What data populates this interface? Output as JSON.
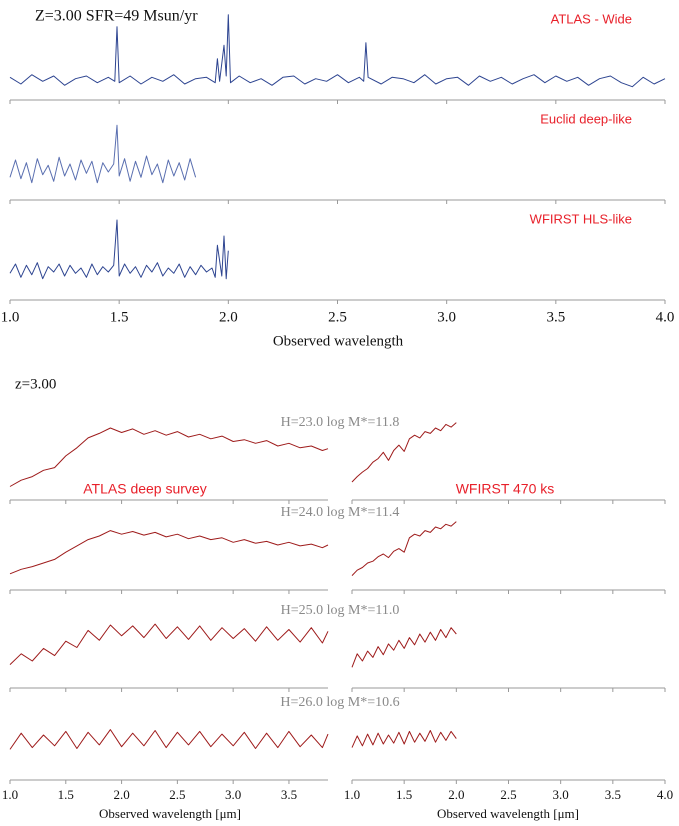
{
  "chart_data": [
    {
      "type": "line",
      "title": "Z=3.00 SFR=49 Msun/yr",
      "xlabel": "Observed wavelength",
      "xlim": [
        1.0,
        4.0
      ],
      "ylim": [
        -1.5,
        5.25
      ],
      "xticks": [
        {
          "value": 1.0,
          "label": "1.0"
        },
        {
          "value": 1.5,
          "label": "1.5"
        },
        {
          "value": 2.0,
          "label": "2.0"
        },
        {
          "value": 2.5,
          "label": "2.5"
        },
        {
          "value": 3.0,
          "label": "3.0"
        },
        {
          "value": 3.5,
          "label": "3.5"
        },
        {
          "value": 4.0,
          "label": "4.0"
        }
      ],
      "series": [
        {
          "name": "ATLAS - Wide",
          "color": "#2e4591",
          "x": [
            1.0,
            1.05,
            1.1,
            1.15,
            1.2,
            1.25,
            1.3,
            1.35,
            1.4,
            1.45,
            1.48,
            1.49,
            1.5,
            1.55,
            1.6,
            1.65,
            1.7,
            1.75,
            1.8,
            1.85,
            1.9,
            1.94,
            1.95,
            1.96,
            1.98,
            1.99,
            2.0,
            2.01,
            2.05,
            2.1,
            2.15,
            2.2,
            2.25,
            2.3,
            2.35,
            2.4,
            2.45,
            2.5,
            2.55,
            2.6,
            2.62,
            2.63,
            2.64,
            2.7,
            2.75,
            2.8,
            2.85,
            2.9,
            2.95,
            3.0,
            3.05,
            3.1,
            3.15,
            3.2,
            3.25,
            3.3,
            3.35,
            3.4,
            3.45,
            3.5,
            3.55,
            3.6,
            3.65,
            3.7,
            3.75,
            3.8,
            3.85,
            3.9,
            3.95,
            4.0
          ],
          "values": [
            0.2,
            -0.3,
            0.4,
            -0.1,
            0.3,
            -0.4,
            0.1,
            0.3,
            -0.2,
            0.2,
            -0.1,
            4.0,
            -0.2,
            0.3,
            -0.3,
            0.2,
            -0.1,
            0.4,
            -0.3,
            0.1,
            0.2,
            -0.2,
            1.6,
            -0.1,
            2.6,
            0.3,
            4.9,
            -0.2,
            0.3,
            -0.2,
            0.1,
            -0.4,
            0.2,
            0.3,
            -0.3,
            0.1,
            -0.1,
            0.4,
            -0.2,
            0.2,
            -0.1,
            2.8,
            0.2,
            -0.3,
            0.2,
            0.1,
            -0.2,
            0.4,
            -0.3,
            0.1,
            0.2,
            -0.4,
            0.3,
            -0.1,
            0.2,
            -0.3,
            0.1,
            0.4,
            -0.2,
            0.3,
            -0.1,
            0.2,
            -0.4,
            0.1,
            0.3,
            -0.2,
            -0.5,
            0.2,
            -0.3,
            0.1
          ]
        },
        {
          "name": "Euclid deep-like",
          "color": "#5a6fb0",
          "x": [
            1.0,
            1.025,
            1.05,
            1.075,
            1.1,
            1.125,
            1.15,
            1.175,
            1.2,
            1.225,
            1.25,
            1.275,
            1.3,
            1.325,
            1.35,
            1.375,
            1.4,
            1.425,
            1.45,
            1.475,
            1.49,
            1.5,
            1.525,
            1.55,
            1.575,
            1.6,
            1.625,
            1.65,
            1.675,
            1.7,
            1.725,
            1.75,
            1.775,
            1.8,
            1.825,
            1.85
          ],
          "values": [
            0.2,
            1.5,
            0.1,
            1.3,
            -0.2,
            1.6,
            0.4,
            1.1,
            -0.1,
            1.7,
            0.3,
            1.2,
            0.0,
            1.5,
            0.5,
            1.4,
            -0.2,
            1.3,
            0.6,
            1.2,
            4.1,
            0.3,
            1.6,
            -0.1,
            1.4,
            0.2,
            1.8,
            0.4,
            1.2,
            -0.2,
            1.5,
            0.3,
            1.3,
            0.0,
            1.6,
            0.2
          ]
        },
        {
          "name": "WFIRST HLS-like",
          "color": "#2e4591",
          "x": [
            1.0,
            1.025,
            1.05,
            1.075,
            1.1,
            1.125,
            1.15,
            1.175,
            1.2,
            1.225,
            1.25,
            1.275,
            1.3,
            1.325,
            1.35,
            1.375,
            1.4,
            1.425,
            1.45,
            1.475,
            1.49,
            1.5,
            1.525,
            1.55,
            1.575,
            1.6,
            1.625,
            1.65,
            1.675,
            1.7,
            1.725,
            1.75,
            1.775,
            1.8,
            1.825,
            1.85,
            1.875,
            1.9,
            1.925,
            1.94,
            1.95,
            1.97,
            1.98,
            1.99,
            2.0
          ],
          "values": [
            0.5,
            1.2,
            0.2,
            1.1,
            0.4,
            1.3,
            0.1,
            1.0,
            0.6,
            1.2,
            0.3,
            1.1,
            0.5,
            0.9,
            0.2,
            1.2,
            0.4,
            1.0,
            0.6,
            1.1,
            4.5,
            0.3,
            1.2,
            0.5,
            1.0,
            0.2,
            1.1,
            0.6,
            1.3,
            0.3,
            0.9,
            0.5,
            1.2,
            0.2,
            1.0,
            0.4,
            1.1,
            0.6,
            0.9,
            0.2,
            2.6,
            0.3,
            3.3,
            0.1,
            2.2
          ]
        }
      ]
    },
    {
      "type": "line",
      "title": "z=3.00",
      "label": "ATLAS deep survey",
      "xlabel": "Observed wavelength [μm]",
      "xlim": [
        1.0,
        3.85
      ],
      "ylim": [
        0,
        10
      ],
      "xticks": [
        {
          "value": 1.0,
          "label": "1.0"
        },
        {
          "value": 1.5,
          "label": "1.5"
        },
        {
          "value": 2.0,
          "label": "2.0"
        },
        {
          "value": 2.5,
          "label": "2.5"
        },
        {
          "value": 3.0,
          "label": "3.0"
        },
        {
          "value": 3.5,
          "label": "3.5"
        }
      ],
      "series": [
        {
          "name": "H=23.0 log M*=11.8",
          "color": "#9e1b1b",
          "x": [
            1.0,
            1.1,
            1.2,
            1.3,
            1.4,
            1.5,
            1.6,
            1.7,
            1.8,
            1.9,
            2.0,
            2.1,
            2.2,
            2.3,
            2.4,
            2.5,
            2.6,
            2.7,
            2.8,
            2.9,
            3.0,
            3.1,
            3.2,
            3.3,
            3.4,
            3.5,
            3.6,
            3.7,
            3.8,
            3.85
          ],
          "values": [
            1.5,
            2.2,
            2.6,
            3.3,
            3.6,
            4.9,
            5.8,
            6.9,
            7.4,
            8.0,
            7.5,
            7.9,
            7.3,
            7.7,
            7.2,
            7.6,
            7.0,
            7.3,
            6.8,
            7.1,
            6.5,
            6.7,
            6.3,
            6.6,
            6.0,
            6.3,
            5.8,
            6.0,
            5.5,
            5.7
          ]
        },
        {
          "name": "H=24.0 log M*=11.4",
          "color": "#9e1b1b",
          "x": [
            1.0,
            1.1,
            1.2,
            1.3,
            1.4,
            1.5,
            1.6,
            1.7,
            1.8,
            1.9,
            2.0,
            2.1,
            2.2,
            2.3,
            2.4,
            2.5,
            2.6,
            2.7,
            2.8,
            2.9,
            3.0,
            3.1,
            3.2,
            3.3,
            3.4,
            3.5,
            3.6,
            3.7,
            3.8,
            3.85
          ],
          "values": [
            1.8,
            2.3,
            2.6,
            3.0,
            3.4,
            4.2,
            4.9,
            5.6,
            6.0,
            6.6,
            6.2,
            6.5,
            6.1,
            6.4,
            5.9,
            6.2,
            5.7,
            6.0,
            5.6,
            5.8,
            5.3,
            5.6,
            5.2,
            5.4,
            5.0,
            5.3,
            4.9,
            5.1,
            4.7,
            5.0
          ]
        },
        {
          "name": "H=25.0 log M*=11.0",
          "color": "#9e1b1b",
          "x": [
            1.0,
            1.1,
            1.2,
            1.3,
            1.4,
            1.5,
            1.6,
            1.7,
            1.8,
            1.9,
            2.0,
            2.1,
            2.2,
            2.3,
            2.4,
            2.5,
            2.6,
            2.7,
            2.8,
            2.9,
            3.0,
            3.1,
            3.2,
            3.3,
            3.4,
            3.5,
            3.6,
            3.7,
            3.8,
            3.85
          ],
          "values": [
            2.6,
            3.8,
            3.0,
            4.4,
            3.6,
            5.2,
            4.5,
            6.4,
            5.3,
            7.0,
            5.8,
            6.9,
            5.6,
            7.1,
            5.5,
            6.8,
            5.4,
            6.9,
            5.3,
            6.7,
            5.5,
            6.6,
            5.2,
            6.8,
            5.3,
            6.5,
            5.1,
            6.7,
            5.0,
            6.3
          ]
        },
        {
          "name": "H=26.0 log M*=10.6",
          "color": "#9e1b1b",
          "x": [
            1.0,
            1.1,
            1.2,
            1.3,
            1.4,
            1.5,
            1.6,
            1.7,
            1.8,
            1.9,
            2.0,
            2.1,
            2.2,
            2.3,
            2.4,
            2.5,
            2.6,
            2.7,
            2.8,
            2.9,
            3.0,
            3.1,
            3.2,
            3.3,
            3.4,
            3.5,
            3.6,
            3.7,
            3.8,
            3.85
          ],
          "values": [
            3.4,
            5.2,
            3.6,
            5.0,
            3.8,
            5.4,
            3.5,
            5.3,
            3.9,
            5.6,
            3.7,
            5.2,
            3.8,
            5.5,
            3.6,
            5.3,
            3.9,
            5.4,
            3.7,
            5.1,
            3.8,
            5.3,
            3.5,
            5.2,
            3.6,
            5.4,
            3.7,
            5.0,
            3.6,
            5.1
          ]
        }
      ]
    },
    {
      "type": "line",
      "label": "WFIRST 470 ks",
      "xlabel": "Observed wavelength [μm]",
      "xlim": [
        1.0,
        4.0
      ],
      "ylim": [
        0,
        10
      ],
      "xticks": [
        {
          "value": 1.0,
          "label": "1.0"
        },
        {
          "value": 1.5,
          "label": "1.5"
        },
        {
          "value": 2.0,
          "label": "2.0"
        },
        {
          "value": 2.5,
          "label": "2.5"
        },
        {
          "value": 3.0,
          "label": "3.0"
        },
        {
          "value": 3.5,
          "label": "3.5"
        },
        {
          "value": 4.0,
          "label": "4.0"
        }
      ],
      "series": [
        {
          "color": "#9e1b1b",
          "x": [
            1.0,
            1.05,
            1.1,
            1.15,
            1.2,
            1.25,
            1.3,
            1.35,
            1.4,
            1.45,
            1.5,
            1.55,
            1.6,
            1.65,
            1.7,
            1.75,
            1.8,
            1.85,
            1.9,
            1.95,
            2.0
          ],
          "values": [
            2.0,
            2.6,
            3.1,
            3.5,
            4.2,
            4.6,
            5.3,
            4.4,
            5.5,
            6.1,
            5.4,
            6.8,
            7.2,
            6.9,
            7.6,
            7.4,
            8.0,
            7.7,
            8.4,
            8.1,
            8.6
          ]
        },
        {
          "color": "#9e1b1b",
          "x": [
            1.0,
            1.05,
            1.1,
            1.15,
            1.2,
            1.25,
            1.3,
            1.35,
            1.4,
            1.45,
            1.5,
            1.55,
            1.6,
            1.65,
            1.7,
            1.75,
            1.8,
            1.85,
            1.9,
            1.95,
            2.0
          ],
          "values": [
            1.6,
            2.2,
            2.5,
            3.0,
            3.2,
            3.7,
            4.0,
            3.6,
            4.3,
            4.6,
            4.2,
            5.8,
            6.2,
            6.0,
            6.6,
            6.4,
            7.0,
            6.8,
            7.3,
            7.1,
            7.6
          ]
        },
        {
          "color": "#9e1b1b",
          "x": [
            1.0,
            1.05,
            1.1,
            1.15,
            1.2,
            1.25,
            1.3,
            1.35,
            1.4,
            1.45,
            1.5,
            1.55,
            1.6,
            1.65,
            1.7,
            1.75,
            1.8,
            1.85,
            1.9,
            1.95,
            2.0
          ],
          "values": [
            2.3,
            3.8,
            3.0,
            4.1,
            3.4,
            4.6,
            3.7,
            4.9,
            4.2,
            5.3,
            4.4,
            5.6,
            4.8,
            6.0,
            5.1,
            6.2,
            5.3,
            6.5,
            5.6,
            6.7,
            6.0
          ]
        },
        {
          "color": "#9e1b1b",
          "x": [
            1.0,
            1.05,
            1.1,
            1.15,
            1.2,
            1.25,
            1.3,
            1.35,
            1.4,
            1.45,
            1.5,
            1.55,
            1.6,
            1.65,
            1.7,
            1.75,
            1.8,
            1.85,
            1.9,
            1.95,
            2.0
          ],
          "values": [
            3.6,
            4.9,
            3.8,
            5.1,
            3.9,
            5.2,
            4.0,
            5.0,
            4.1,
            5.3,
            4.0,
            5.4,
            4.2,
            5.2,
            4.3,
            5.5,
            4.2,
            5.3,
            4.4,
            5.4,
            4.6
          ]
        }
      ]
    }
  ]
}
